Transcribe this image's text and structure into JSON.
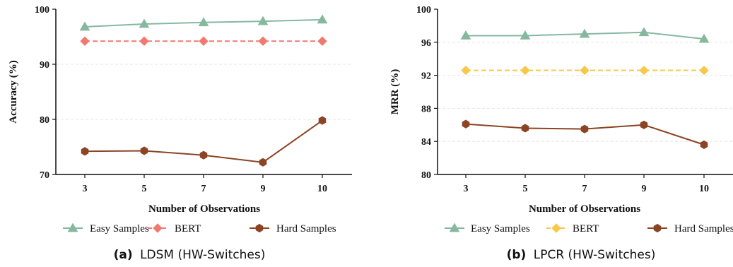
{
  "chart_data": [
    {
      "type": "line",
      "caption_prefix": "(a)",
      "caption_text": "LDSM (HW-Switches)",
      "xlabel": "Number of Observations",
      "ylabel": "Accuracy (%)",
      "categories": [
        "3",
        "5",
        "7",
        "9",
        "10"
      ],
      "ylim": [
        70,
        100
      ],
      "yticks": [
        70,
        80,
        90,
        100
      ],
      "grid": true,
      "legend_position": "bottom",
      "series": [
        {
          "name": "Easy Samples",
          "values": [
            96.8,
            97.3,
            97.6,
            97.8,
            98.1
          ],
          "color": "#86b8a0",
          "marker": "triangle",
          "dashed": false
        },
        {
          "name": "BERT",
          "values": [
            94.2,
            94.2,
            94.2,
            94.2,
            94.2
          ],
          "color": "#f07a70",
          "marker": "diamond",
          "dashed": true
        },
        {
          "name": "Hard Samples",
          "values": [
            74.2,
            74.3,
            73.5,
            72.2,
            79.8
          ],
          "color": "#8b4424",
          "marker": "hexagon",
          "dashed": false
        }
      ]
    },
    {
      "type": "line",
      "caption_prefix": "(b)",
      "caption_text": "LPCR (HW-Switches)",
      "xlabel": "Number of Observations",
      "ylabel": "MRR (%)",
      "categories": [
        "3",
        "5",
        "7",
        "9",
        "10"
      ],
      "ylim": [
        80,
        100
      ],
      "yticks": [
        80,
        84,
        88,
        92,
        96,
        100
      ],
      "grid": true,
      "legend_position": "bottom",
      "series": [
        {
          "name": "Easy Samples",
          "values": [
            96.8,
            96.8,
            97.0,
            97.2,
            96.4
          ],
          "color": "#86b8a0",
          "marker": "triangle",
          "dashed": false
        },
        {
          "name": "BERT",
          "values": [
            92.6,
            92.6,
            92.6,
            92.6,
            92.6
          ],
          "color": "#f7c84a",
          "marker": "diamond",
          "dashed": true
        },
        {
          "name": "Hard Samples",
          "values": [
            86.1,
            85.6,
            85.5,
            86.0,
            83.6
          ],
          "color": "#8b4424",
          "marker": "hexagon",
          "dashed": false
        }
      ]
    }
  ]
}
